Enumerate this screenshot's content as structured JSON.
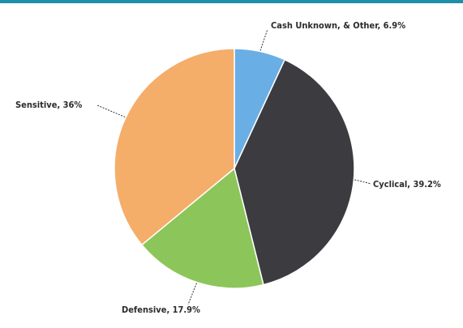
{
  "chart_data": {
    "type": "pie",
    "title": "",
    "slices": [
      {
        "name": "Cash Unknown, & Other",
        "value": 6.9,
        "label": "Cash Unknown, & Other, 6.9%",
        "color": "#6aaee6"
      },
      {
        "name": "Cyclical",
        "value": 39.2,
        "label": "Cyclical, 39.2%",
        "color": "#3c3c40"
      },
      {
        "name": "Defensive",
        "value": 17.9,
        "label": "Defensive, 17.9%",
        "color": "#8cc65a"
      },
      {
        "name": "Sensitive",
        "value": 36,
        "label": "Sensitive, 36%",
        "color": "#f5ad6a"
      }
    ],
    "start_angle": "12 o'clock",
    "direction": "clockwise",
    "legend": "none"
  },
  "colors": {
    "top_bar": "#1e8fa8",
    "slice_edge": "#ffffff"
  }
}
